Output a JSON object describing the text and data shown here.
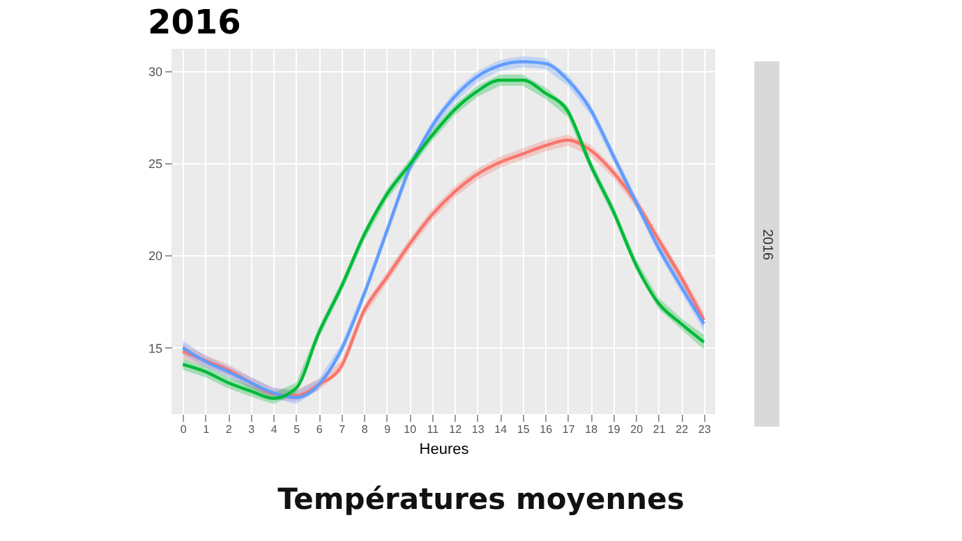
{
  "chart_data": {
    "type": "line",
    "title": "2016",
    "xlabel": "Heures",
    "annotations": [
      "2016",
      "Températures moyennes"
    ],
    "x": [
      0,
      1,
      2,
      3,
      4,
      5,
      6,
      7,
      8,
      9,
      10,
      11,
      12,
      13,
      14,
      15,
      16,
      17,
      18,
      19,
      20,
      21,
      22,
      23
    ],
    "xlim": [
      -0.5,
      23.5
    ],
    "xticks": [
      0,
      1,
      2,
      3,
      4,
      5,
      6,
      7,
      8,
      9,
      10,
      11,
      12,
      13,
      14,
      15,
      16,
      17,
      18,
      19,
      20,
      21,
      22,
      23
    ],
    "ylim": [
      11.4,
      31.2
    ],
    "yticks": [
      15,
      20,
      25,
      30
    ],
    "grid": true,
    "legend": false,
    "series": [
      {
        "color": "#f8766d",
        "values": [
          14.8,
          14.3,
          13.8,
          13.1,
          12.5,
          12.4,
          13.0,
          14.0,
          17.0,
          18.8,
          20.6,
          22.2,
          23.45,
          24.4,
          25.05,
          25.5,
          25.95,
          26.25,
          25.7,
          24.5,
          22.9,
          20.85,
          18.8,
          16.5
        ],
        "lower": [
          14.4,
          14.0,
          13.5,
          12.8,
          12.2,
          12.1,
          12.7,
          13.7,
          16.7,
          18.5,
          20.3,
          21.9,
          23.15,
          24.1,
          24.75,
          25.2,
          25.65,
          25.95,
          25.4,
          24.2,
          22.6,
          20.55,
          18.5,
          16.1
        ],
        "upper": [
          15.2,
          14.6,
          14.1,
          13.4,
          12.8,
          12.7,
          13.3,
          14.3,
          17.3,
          19.1,
          20.9,
          22.5,
          23.75,
          24.7,
          25.35,
          25.8,
          26.25,
          26.55,
          26.0,
          24.8,
          23.2,
          21.15,
          19.1,
          16.9
        ]
      },
      {
        "color": "#619cff",
        "values": [
          15.0,
          14.25,
          13.7,
          13.1,
          12.55,
          12.3,
          13.0,
          14.9,
          17.9,
          21.3,
          24.7,
          27.0,
          28.6,
          29.7,
          30.3,
          30.5,
          30.4,
          29.5,
          27.9,
          25.4,
          22.9,
          20.4,
          18.3,
          16.3
        ],
        "lower": [
          14.6,
          13.95,
          13.4,
          12.8,
          12.25,
          11.95,
          12.7,
          14.6,
          17.6,
          21.0,
          24.4,
          26.7,
          28.3,
          29.4,
          30.0,
          30.2,
          30.1,
          29.2,
          27.6,
          25.1,
          22.6,
          20.1,
          18.0,
          15.9
        ],
        "upper": [
          15.4,
          14.55,
          14.0,
          13.4,
          12.85,
          12.65,
          13.3,
          15.2,
          18.2,
          21.6,
          25.0,
          27.3,
          28.9,
          30.0,
          30.6,
          30.8,
          30.7,
          29.8,
          28.2,
          25.7,
          23.2,
          20.7,
          18.6,
          16.7
        ]
      },
      {
        "color": "#00ba38",
        "values": [
          14.1,
          13.7,
          13.1,
          12.65,
          12.25,
          12.8,
          15.8,
          18.3,
          21.1,
          23.3,
          24.9,
          26.5,
          27.9,
          28.9,
          29.5,
          29.5,
          28.8,
          27.8,
          24.9,
          22.4,
          19.5,
          17.4,
          16.3,
          15.3
        ],
        "lower": [
          13.8,
          13.4,
          12.8,
          12.35,
          11.95,
          12.5,
          15.5,
          18.0,
          20.8,
          23.0,
          24.6,
          26.2,
          27.6,
          28.6,
          29.2,
          29.2,
          28.5,
          27.5,
          24.6,
          22.1,
          19.2,
          17.1,
          16.0,
          14.9
        ],
        "upper": [
          14.4,
          14.0,
          13.4,
          12.95,
          12.55,
          13.1,
          16.1,
          18.6,
          21.4,
          23.6,
          25.2,
          26.8,
          28.2,
          29.2,
          29.8,
          29.8,
          29.1,
          28.1,
          25.2,
          22.7,
          19.8,
          17.7,
          16.6,
          15.7
        ]
      }
    ]
  }
}
